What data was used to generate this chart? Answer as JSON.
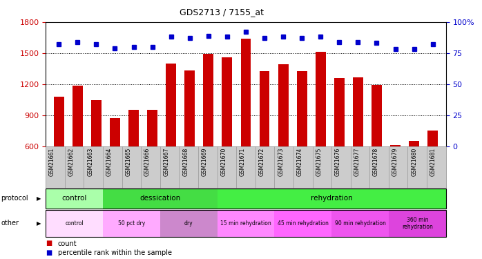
{
  "title": "GDS2713 / 7155_at",
  "samples": [
    "GSM21661",
    "GSM21662",
    "GSM21663",
    "GSM21664",
    "GSM21665",
    "GSM21666",
    "GSM21667",
    "GSM21668",
    "GSM21669",
    "GSM21670",
    "GSM21671",
    "GSM21672",
    "GSM21673",
    "GSM21674",
    "GSM21675",
    "GSM21676",
    "GSM21677",
    "GSM21678",
    "GSM21679",
    "GSM21680",
    "GSM21681"
  ],
  "counts": [
    1080,
    1185,
    1045,
    875,
    955,
    955,
    1400,
    1335,
    1495,
    1460,
    1640,
    1325,
    1390,
    1325,
    1515,
    1260,
    1265,
    1195,
    610,
    655,
    750
  ],
  "percentiles": [
    82,
    84,
    82,
    79,
    80,
    80,
    88,
    87,
    89,
    88,
    92,
    87,
    88,
    87,
    88,
    84,
    84,
    83,
    78,
    78,
    82
  ],
  "ylim_left": [
    600,
    1800
  ],
  "ylim_right": [
    0,
    100
  ],
  "yticks_left": [
    600,
    900,
    1200,
    1500,
    1800
  ],
  "yticks_right": [
    0,
    25,
    50,
    75,
    100
  ],
  "bar_color": "#cc0000",
  "dot_color": "#0000cc",
  "protocol_colors": [
    "#aaffaa",
    "#44dd44",
    "#44ee44"
  ],
  "other_colors": [
    "#ffddff",
    "#ffaaff",
    "#cc88cc",
    "#ff88ff",
    "#ff66ff",
    "#ee55ee",
    "#dd44dd"
  ],
  "protocol_groups": [
    {
      "name": "control",
      "start": 0,
      "end": 3
    },
    {
      "name": "dessication",
      "start": 3,
      "end": 9
    },
    {
      "name": "rehydration",
      "start": 9,
      "end": 21
    }
  ],
  "other_groups": [
    {
      "name": "control",
      "start": 0,
      "end": 3
    },
    {
      "name": "50 pct dry",
      "start": 3,
      "end": 6
    },
    {
      "name": "dry",
      "start": 6,
      "end": 9
    },
    {
      "name": "15 min rehydration",
      "start": 9,
      "end": 12
    },
    {
      "name": "45 min rehydration",
      "start": 12,
      "end": 15
    },
    {
      "name": "90 min rehydration",
      "start": 15,
      "end": 18
    },
    {
      "name": "360 min\nrehydration",
      "start": 18,
      "end": 21
    }
  ]
}
